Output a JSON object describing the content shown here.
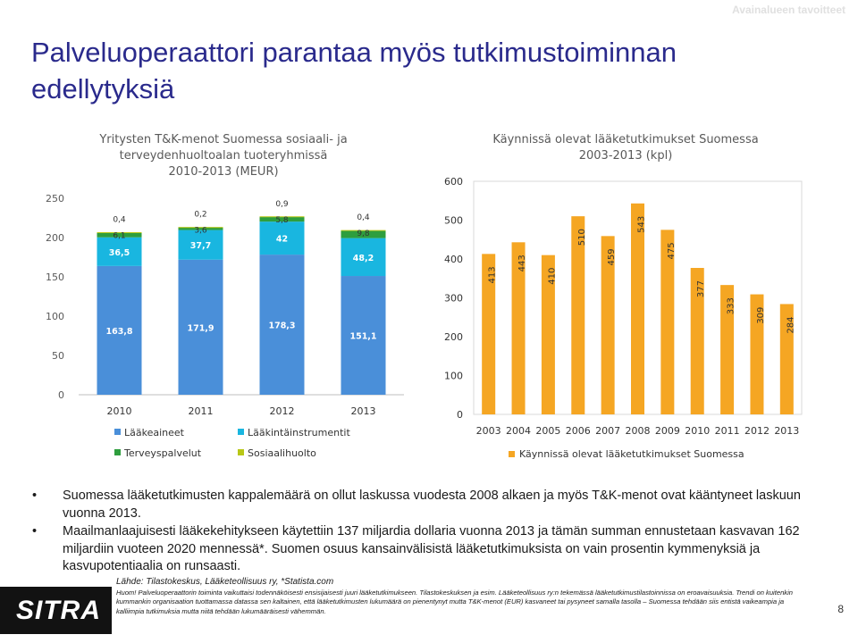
{
  "header": {
    "section_tag": "Avainalueen tavoitteet"
  },
  "title": "Palveluoperaattori parantaa myös tutkimustoiminnan edellytyksiä",
  "colors": {
    "title": "#2a2a8c",
    "laakeaineet": "#4a8fd9",
    "laakintainstrumentit": "#19b6e0",
    "terveyspalvelut": "#2e9e3e",
    "sosiaalihuolto": "#b8c716",
    "bars_right": "#f5a623"
  },
  "chart_data": [
    {
      "type": "bar",
      "stacked": true,
      "title_lines": [
        "Yritysten T&K-menot Suomessa sosiaali- ja",
        "terveydenhuoltoalan tuoteryhmissä",
        "2010-2013 (MEUR)"
      ],
      "categories": [
        "2010",
        "2011",
        "2012",
        "2013"
      ],
      "series": [
        {
          "name": "Lääkeaineet",
          "values": [
            163.8,
            171.9,
            178.3,
            151.1
          ],
          "labels": [
            "163,8",
            "171,9",
            "178,3",
            "151,1"
          ]
        },
        {
          "name": "Lääkintäinstrumentit",
          "values": [
            36.5,
            37.7,
            42,
            48.2
          ],
          "labels": [
            "36,5",
            "37,7",
            "42",
            "48,2"
          ]
        },
        {
          "name": "Terveyspalvelut",
          "values": [
            6.1,
            3.6,
            5.8,
            9.8
          ],
          "labels": [
            "6,1",
            "3,6",
            "5,8",
            "9,8"
          ]
        },
        {
          "name": "Sosiaalihuolto",
          "values": [
            0.4,
            0.2,
            0.9,
            0.4
          ],
          "labels": [
            "0,4",
            "0,2",
            "0,9",
            "0,4"
          ]
        }
      ],
      "ylim": [
        0,
        250
      ],
      "yticks": [
        0,
        50,
        100,
        150,
        200,
        250
      ],
      "legend": "bottom",
      "grid": false
    },
    {
      "type": "bar",
      "title_lines": [
        "Käynnissä olevat lääketutkimukset Suomessa",
        "2003-2013 (kpl)"
      ],
      "categories": [
        "2003",
        "2004",
        "2005",
        "2006",
        "2007",
        "2008",
        "2009",
        "2010",
        "2011",
        "2012",
        "2013"
      ],
      "series": [
        {
          "name": "Käynnissä olevat lääketutkimukset Suomessa",
          "values": [
            413,
            443,
            410,
            510,
            459,
            543,
            475,
            377,
            333,
            309,
            284
          ]
        }
      ],
      "ylim": [
        0,
        600
      ],
      "yticks": [
        0,
        100,
        200,
        300,
        400,
        500,
        600
      ],
      "legend": "bottom",
      "grid": false
    }
  ],
  "bullets": [
    "Suomessa lääketutkimusten kappalemäärä on ollut laskussa vuodesta 2008 alkaen ja myös T&K-menot ovat kääntyneet laskuun vuonna 2013.",
    "Maailmanlaajuisesti lääkekehitykseen käytettiin 137 miljardia dollaria vuonna 2013 ja tämän summan ennustetaan kasvavan 162 miljardiin vuoteen 2020 mennessä*. Suomen osuus kansainvälisistä lääketutkimuksista on vain prosentin kymmenyksiä ja kasvupotentiaalia on runsaasti."
  ],
  "source": "Lähde: Tilastokeskus, Lääketeollisuus ry, *Statista.com",
  "note": "Huom! Palveluoperaattorin toiminta vaikuttaisi todennäköisesti ensisijaisesti juuri lääketutkimukseen. Tilastokeskuksen ja esim. Lääketeollisuus ry:n tekemässä lääketutkimustilastoinnissa on eroavaisuuksia. Trendi on kuitenkin kummankin organisaation tuottamassa datassa sen kaltainen, että lääketutkimusten lukumäärä on pienentynyt mutta T&K-menot (EUR) kasvaneet tai pysyneet samalla tasolla – Suomessa tehdään siis entistä vaikeampia ja kalliimpia tutkimuksia mutta niitä tehdään lukumääräisesti vähemmän.",
  "logo": "SITRA",
  "page_number": "8"
}
